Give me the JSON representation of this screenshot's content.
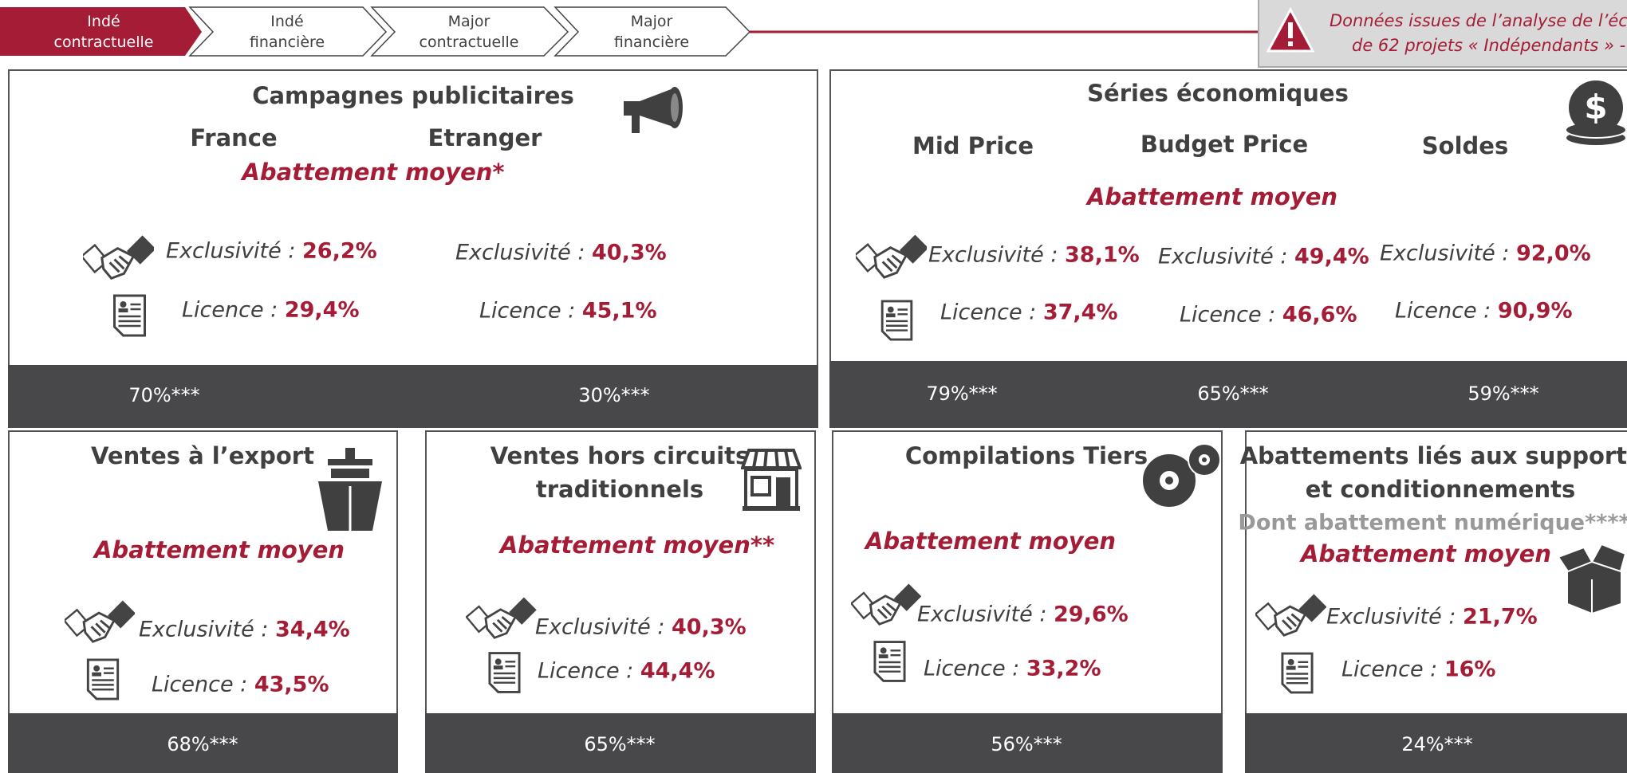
{
  "nav": [
    {
      "lines": [
        "Indé",
        "contractuelle"
      ]
    },
    {
      "lines": [
        "Indé",
        "financière"
      ]
    },
    {
      "lines": [
        "Major",
        "contractuelle"
      ]
    },
    {
      "lines": [
        "Major",
        "financière"
      ]
    }
  ],
  "notice": {
    "lines": [
      "Données issues de l’analyse de l’éch",
      "de 62 projets « Indépendants » - "
    ]
  },
  "panels": [
    {
      "title": [
        "Campagnes publicitaires"
      ],
      "subtitle": "Abattement moyen*",
      "columns": [
        {
          "name": "France",
          "exclusivity": {
            "label": "Exclusivité :",
            "value": "26,2%"
          },
          "licence": {
            "label": "Licence :",
            "value": "29,4%"
          },
          "share": "70%***"
        },
        {
          "name": "Etranger",
          "exclusivity": {
            "label": "Exclusivité :",
            "value": "40,3%"
          },
          "licence": {
            "label": "Licence :",
            "value": "45,1%"
          },
          "share": "30%***"
        }
      ]
    },
    {
      "title": [
        "Séries économiques"
      ],
      "subtitle": "Abattement moyen",
      "columns": [
        {
          "name": "Mid Price",
          "exclusivity": {
            "label": "Exclusivité :",
            "value": "38,1%"
          },
          "licence": {
            "label": "Licence :",
            "value": "37,4%"
          },
          "share": "79%***"
        },
        {
          "name": "Budget Price",
          "exclusivity": {
            "label": "Exclusivité :",
            "value": "49,4%"
          },
          "licence": {
            "label": "Licence :",
            "value": "46,6%"
          },
          "share": "65%***"
        },
        {
          "name": "Soldes",
          "exclusivity": {
            "label": "Exclusivité :",
            "value": "92,0%"
          },
          "licence": {
            "label": "Licence :",
            "value": "90,9%"
          },
          "share": "59%***"
        }
      ]
    },
    {
      "title": [
        "Ventes à l’export"
      ],
      "subtitle": "Abattement moyen",
      "columns": [
        {
          "exclusivity": {
            "label": "Exclusivité :",
            "value": "34,4%"
          },
          "licence": {
            "label": "Licence :",
            "value": "43,5%"
          },
          "share": "68%***"
        }
      ]
    },
    {
      "title": [
        "Ventes hors circuits",
        "traditionnels"
      ],
      "subtitle": "Abattement moyen**",
      "columns": [
        {
          "exclusivity": {
            "label": "Exclusivité :",
            "value": "40,3%"
          },
          "licence": {
            "label": "Licence :",
            "value": "44,4%"
          },
          "share": "65%***"
        }
      ]
    },
    {
      "title": [
        "Compilations Tiers"
      ],
      "subtitle": "Abattement moyen",
      "columns": [
        {
          "exclusivity": {
            "label": "Exclusivité :",
            "value": "29,6%"
          },
          "licence": {
            "label": "Licence :",
            "value": "33,2%"
          },
          "share": "56%***"
        }
      ]
    },
    {
      "title": [
        "Abattements liés aux supports",
        "et conditionnements"
      ],
      "note": "Dont abattement numérique****",
      "subtitle": "Abattement moyen",
      "columns": [
        {
          "exclusivity": {
            "label": "Exclusivité :",
            "value": "21,7%"
          },
          "licence": {
            "label": "Licence :",
            "value": "16%"
          },
          "share": "24%***"
        }
      ]
    }
  ]
}
